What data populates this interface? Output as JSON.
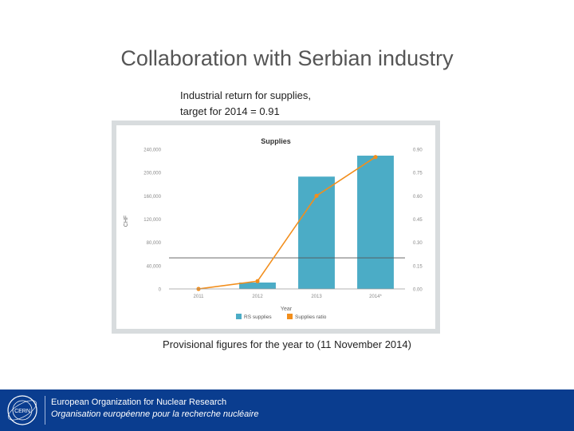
{
  "slide": {
    "title": "Collaboration with Serbian industry",
    "subtitle_line1": "Industrial return for supplies,",
    "subtitle_line2": "target for 2014 = 0.91",
    "caption": "Provisional figures for the year to (11 November 2014)"
  },
  "footer": {
    "org_en": "European Organization for Nuclear Research",
    "org_fr": "Organisation européenne pour la recherche nucléaire",
    "logo_text": "CERN",
    "background_color": "#0a3d8f"
  },
  "chart_data": {
    "type": "bar",
    "title": "Supplies",
    "xlabel": "Year",
    "ylabel": "CHF",
    "categories": [
      "2011",
      "2012",
      "2013",
      "2014*"
    ],
    "ylim": [
      0,
      240000
    ],
    "y2lim": [
      0,
      0.9
    ],
    "y_ticks": [
      "0",
      "40,000",
      "80,000",
      "120,000",
      "160,000",
      "200,000",
      "240,000"
    ],
    "y2_ticks": [
      "0.00",
      "0.15",
      "0.30",
      "0.45",
      "0.60",
      "0.75",
      "0.90"
    ],
    "series": [
      {
        "name": "RS supplies",
        "type": "bar",
        "axis": "left",
        "color": "#4bacc6",
        "values": [
          0,
          11000,
          193000,
          229000
        ]
      },
      {
        "name": "Supplies ratio",
        "type": "line",
        "axis": "right",
        "color": "#f28e1c",
        "values": [
          0.0,
          0.05,
          0.6,
          0.85
        ]
      }
    ],
    "reference_line": {
      "axis": "right",
      "value": 0.2
    },
    "grid": false,
    "legend_position": "bottom"
  }
}
